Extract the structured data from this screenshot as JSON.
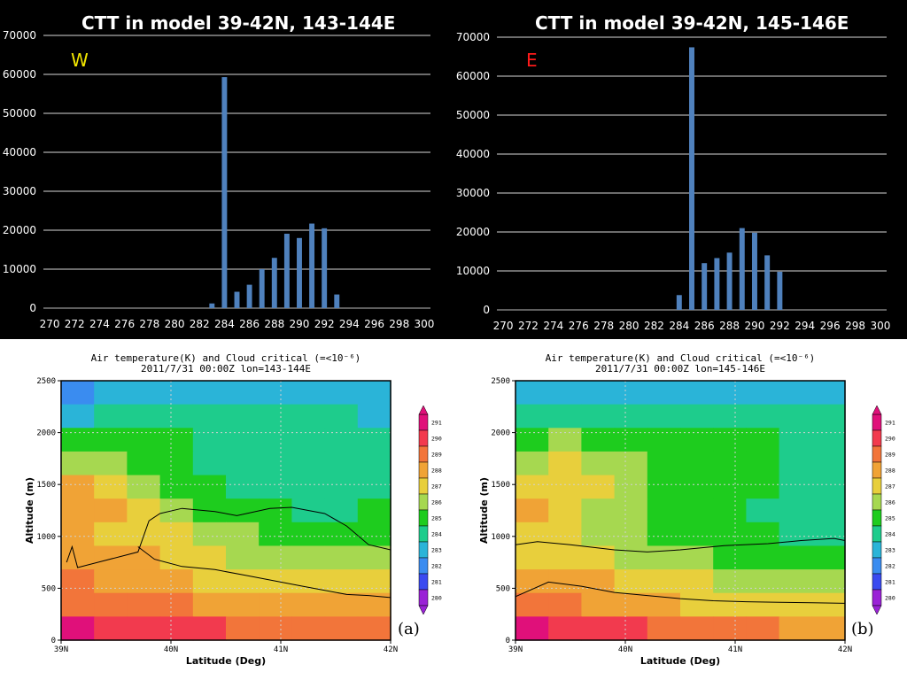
{
  "chart_data": [
    {
      "type": "bar",
      "title": "CTT in model 39-42N, 143-144E",
      "annotation": "W",
      "annotation_color": "#f2e600",
      "bar_color": "#4f81bd",
      "x": [
        270,
        271,
        272,
        273,
        274,
        275,
        276,
        277,
        278,
        279,
        280,
        281,
        282,
        283,
        284,
        285,
        286,
        287,
        288,
        289,
        290,
        291,
        292,
        293,
        294,
        295,
        296,
        297,
        298,
        299,
        300
      ],
      "values": [
        0,
        0,
        0,
        0,
        0,
        0,
        0,
        0,
        0,
        0,
        0,
        0,
        0,
        1200,
        59300,
        4200,
        6000,
        10000,
        12900,
        19100,
        18000,
        21700,
        20500,
        3500,
        0,
        0,
        0,
        0,
        0,
        0,
        0
      ],
      "xticks": [
        270,
        272,
        274,
        276,
        278,
        280,
        282,
        284,
        286,
        288,
        290,
        292,
        294,
        296,
        298,
        300
      ],
      "ylim": [
        0,
        70000
      ],
      "yticks": [
        0,
        10000,
        20000,
        30000,
        40000,
        50000,
        60000,
        70000
      ],
      "grid": true
    },
    {
      "type": "bar",
      "title": "CTT in model 39-42N, 145-146E",
      "annotation": "E",
      "annotation_color": "#ff1a1a",
      "bar_color": "#4f81bd",
      "x": [
        270,
        271,
        272,
        273,
        274,
        275,
        276,
        277,
        278,
        279,
        280,
        281,
        282,
        283,
        284,
        285,
        286,
        287,
        288,
        289,
        290,
        291,
        292,
        293,
        294,
        295,
        296,
        297,
        298,
        299,
        300
      ],
      "values": [
        0,
        0,
        0,
        0,
        0,
        0,
        0,
        0,
        0,
        0,
        0,
        0,
        0,
        0,
        3800,
        67400,
        12000,
        13300,
        14700,
        21000,
        19800,
        14000,
        9800,
        0,
        0,
        0,
        0,
        0,
        0,
        0,
        0
      ],
      "xticks": [
        270,
        272,
        274,
        276,
        278,
        280,
        282,
        284,
        286,
        288,
        290,
        292,
        294,
        296,
        298,
        300
      ],
      "ylim": [
        0,
        70000
      ],
      "yticks": [
        0,
        10000,
        20000,
        30000,
        40000,
        50000,
        60000,
        70000
      ],
      "grid": true
    },
    {
      "type": "heatmap",
      "title_line1": "Air temperature(K) and Cloud critical (=<10⁻⁶)",
      "title_line2": "2011/7/31 00:00Z lon=143-144E",
      "xlabel": "Latitude (Deg)",
      "ylabel": "Altitude (m)",
      "xticks": [
        "39N",
        "40N",
        "41N",
        "42N"
      ],
      "yticks": [
        0,
        500,
        1000,
        1500,
        2000,
        2500
      ],
      "ylim": [
        0,
        2500
      ],
      "panel_label": "(a)",
      "colorbar": [
        291,
        290,
        289,
        288,
        287,
        286,
        285,
        284,
        283,
        282,
        281,
        280
      ],
      "temps_top_to_bottom": [
        [
          282.2,
          283.0,
          283.2,
          283.1,
          283.0,
          283.0,
          283.0,
          283.1,
          283.0,
          282.6
        ],
        [
          283.2,
          284.0,
          284.2,
          284.1,
          284.0,
          284.0,
          284.1,
          284.2,
          284.0,
          283.4
        ],
        [
          284.7,
          285.0,
          284.9,
          284.5,
          284.2,
          284.0,
          284.2,
          284.3,
          284.3,
          284.1
        ],
        [
          286.2,
          286.0,
          285.4,
          284.8,
          284.2,
          284.0,
          284.0,
          284.1,
          284.2,
          284.3
        ],
        [
          287.5,
          287.2,
          286.1,
          285.1,
          284.6,
          284.2,
          284.0,
          284.1,
          284.2,
          284.3
        ],
        [
          288.1,
          287.7,
          286.6,
          285.8,
          285.2,
          284.9,
          284.5,
          284.4,
          284.4,
          284.6
        ],
        [
          287.5,
          287.4,
          287.0,
          286.5,
          286.0,
          285.6,
          285.2,
          285.0,
          285.0,
          285.2
        ],
        [
          288.0,
          287.8,
          287.5,
          287.1,
          286.8,
          286.4,
          286.1,
          285.9,
          285.8,
          285.9
        ],
        [
          288.5,
          288.3,
          288.0,
          287.7,
          287.4,
          287.2,
          287.0,
          286.8,
          286.7,
          286.8
        ],
        [
          289.2,
          289.0,
          288.8,
          288.6,
          288.4,
          288.2,
          288.0,
          287.8,
          287.7,
          287.6
        ],
        [
          290.5,
          290.3,
          290.0,
          289.8,
          289.5,
          289.3,
          289.1,
          288.9,
          288.8,
          288.7
        ]
      ],
      "cloud_top_line": [
        [
          39.05,
          750
        ],
        [
          39.1,
          900
        ],
        [
          39.15,
          700
        ],
        [
          39.7,
          850
        ],
        [
          39.8,
          1150
        ],
        [
          39.9,
          1220
        ],
        [
          40.1,
          1270
        ],
        [
          40.4,
          1240
        ],
        [
          40.6,
          1200
        ],
        [
          40.9,
          1270
        ],
        [
          41.1,
          1280
        ],
        [
          41.4,
          1220
        ],
        [
          41.6,
          1100
        ],
        [
          41.8,
          920
        ],
        [
          42.0,
          870
        ]
      ],
      "cloud_base_line": [
        [
          39.7,
          900
        ],
        [
          39.85,
          780
        ],
        [
          40.1,
          710
        ],
        [
          40.4,
          680
        ],
        [
          40.7,
          620
        ],
        [
          41.0,
          560
        ],
        [
          41.2,
          520
        ],
        [
          41.4,
          480
        ],
        [
          41.6,
          440
        ],
        [
          41.8,
          430
        ],
        [
          42.0,
          410
        ]
      ]
    },
    {
      "type": "heatmap",
      "title_line1": "Air temperature(K) and Cloud critical (=<10⁻⁶)",
      "title_line2": "2011/7/31 00:00Z lon=145-146E",
      "xlabel": "Latitude (Deg)",
      "ylabel": "Altitude (m)",
      "xticks": [
        "39N",
        "40N",
        "41N",
        "42N"
      ],
      "yticks": [
        0,
        500,
        1000,
        1500,
        2000,
        2500
      ],
      "ylim": [
        0,
        2500
      ],
      "panel_label": "(b)",
      "colorbar": [
        291,
        290,
        289,
        288,
        287,
        286,
        285,
        284,
        283,
        282,
        281,
        280
      ],
      "temps_top_to_bottom": [
        [
          283.0,
          283.0,
          283.0,
          283.0,
          283.0,
          283.0,
          283.0,
          283.0,
          283.0,
          282.6
        ],
        [
          284.0,
          284.0,
          284.0,
          284.0,
          284.0,
          284.0,
          284.0,
          284.0,
          284.0,
          283.6
        ],
        [
          285.3,
          285.6,
          285.4,
          285.2,
          285.1,
          285.0,
          284.8,
          284.6,
          284.4,
          284.4
        ],
        [
          286.3,
          286.6,
          286.1,
          285.6,
          285.3,
          285.1,
          285.0,
          284.6,
          284.4,
          284.3
        ],
        [
          287.3,
          287.3,
          286.5,
          285.9,
          285.4,
          285.1,
          284.9,
          284.5,
          284.2,
          284.2
        ],
        [
          287.6,
          287.2,
          286.4,
          285.8,
          285.3,
          285.0,
          284.8,
          284.4,
          284.2,
          284.1
        ],
        [
          286.9,
          286.7,
          286.2,
          285.7,
          285.3,
          285.0,
          284.8,
          284.5,
          284.3,
          284.3
        ],
        [
          287.3,
          287.1,
          286.8,
          286.4,
          286.0,
          285.6,
          285.3,
          285.0,
          284.8,
          284.8
        ],
        [
          288.0,
          287.8,
          287.5,
          287.1,
          286.8,
          286.5,
          286.2,
          285.9,
          285.7,
          285.6
        ],
        [
          289.0,
          288.8,
          288.4,
          288.0,
          287.6,
          287.3,
          287.0,
          286.8,
          286.6,
          286.5
        ],
        [
          290.5,
          290.2,
          289.9,
          289.6,
          289.3,
          289.0,
          288.8,
          288.6,
          288.4,
          288.3
        ]
      ],
      "cloud_top_line": [
        [
          39.0,
          920
        ],
        [
          39.2,
          950
        ],
        [
          39.5,
          920
        ],
        [
          39.9,
          870
        ],
        [
          40.2,
          850
        ],
        [
          40.5,
          870
        ],
        [
          40.9,
          910
        ],
        [
          41.3,
          930
        ],
        [
          41.6,
          960
        ],
        [
          41.9,
          980
        ],
        [
          42.0,
          960
        ]
      ],
      "cloud_base_line": [
        [
          39.0,
          420
        ],
        [
          39.3,
          560
        ],
        [
          39.6,
          520
        ],
        [
          39.9,
          460
        ],
        [
          40.2,
          430
        ],
        [
          40.5,
          400
        ],
        [
          40.8,
          380
        ],
        [
          41.1,
          370
        ],
        [
          41.4,
          365
        ],
        [
          41.7,
          360
        ],
        [
          42.0,
          355
        ]
      ]
    }
  ]
}
